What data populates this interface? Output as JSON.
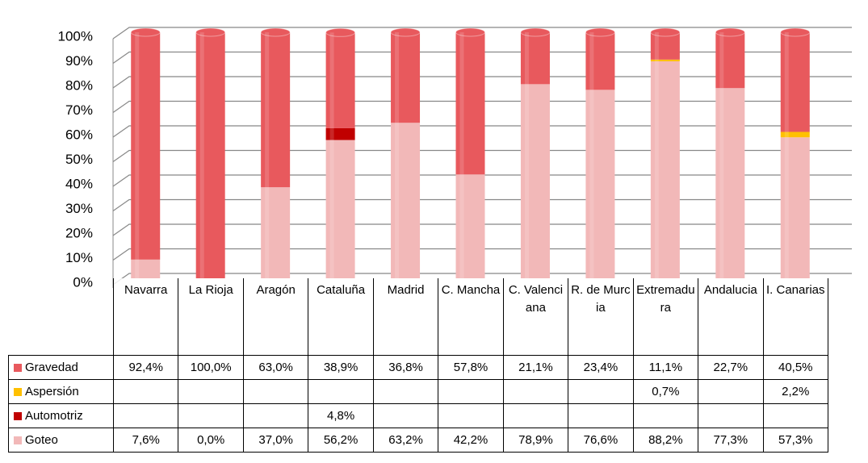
{
  "chart_data": {
    "type": "bar",
    "stacked": true,
    "categories": [
      "Navarra",
      "La Rioja",
      "Aragón",
      "Cataluña",
      "Madrid",
      "C. Mancha",
      "C. Valenciana",
      "R. de Murcia",
      "Extremadura",
      "Andalucia",
      "I. Canarias"
    ],
    "series": [
      {
        "name": "Gravedad",
        "color": "#e8595d",
        "values": [
          92.4,
          100.0,
          63.0,
          38.9,
          36.8,
          57.8,
          21.1,
          23.4,
          11.1,
          22.7,
          40.5
        ],
        "value_labels": [
          "92,4%",
          "100,0%",
          "63,0%",
          "38,9%",
          "36,8%",
          "57,8%",
          "21,1%",
          "23,4%",
          "11,1%",
          "22,7%",
          "40,5%"
        ]
      },
      {
        "name": "Aspersión",
        "color": "#ffc000",
        "values": [
          null,
          null,
          null,
          null,
          null,
          null,
          null,
          null,
          0.7,
          null,
          2.2
        ],
        "value_labels": [
          null,
          null,
          null,
          null,
          null,
          null,
          null,
          null,
          "0,7%",
          null,
          "2,2%"
        ]
      },
      {
        "name": "Automotriz",
        "color": "#c00000",
        "values": [
          null,
          null,
          null,
          4.8,
          null,
          null,
          null,
          null,
          null,
          null,
          null
        ],
        "value_labels": [
          null,
          null,
          null,
          "4,8%",
          null,
          null,
          null,
          null,
          null,
          null,
          null
        ]
      },
      {
        "name": "Goteo",
        "color": "#f2b8b8",
        "values": [
          7.6,
          0.0,
          37.0,
          56.2,
          63.2,
          42.2,
          78.9,
          76.6,
          88.2,
          77.3,
          57.3
        ],
        "value_labels": [
          "7,6%",
          "0,0%",
          "37,0%",
          "56,2%",
          "63,2%",
          "42,2%",
          "78,9%",
          "76,6%",
          "88,2%",
          "77,3%",
          "57,3%"
        ]
      }
    ],
    "ylim": [
      0,
      100
    ],
    "yticks": [
      {
        "value": 0,
        "label": "0%"
      },
      {
        "value": 10,
        "label": "10%"
      },
      {
        "value": 20,
        "label": "20%"
      },
      {
        "value": 30,
        "label": "30%"
      },
      {
        "value": 40,
        "label": "40%"
      },
      {
        "value": 50,
        "label": "50%"
      },
      {
        "value": 60,
        "label": "60%"
      },
      {
        "value": 70,
        "label": "70%"
      },
      {
        "value": 80,
        "label": "80%"
      },
      {
        "value": 90,
        "label": "90%"
      },
      {
        "value": 100,
        "label": "100%"
      }
    ],
    "grid": true
  }
}
